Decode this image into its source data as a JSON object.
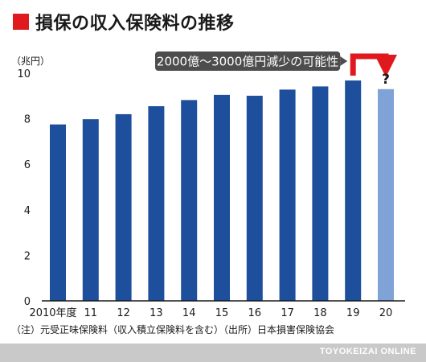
{
  "title": "損保の収入保険料の推移",
  "colors": {
    "accent": "#e0191e",
    "bar": "#1d4f9c",
    "bar_estimate": "#7fa3d6",
    "callout_bg": "#4d4d4d",
    "source_bar": "#c9c9c9"
  },
  "chart_data": {
    "type": "bar",
    "ylabel": "（兆円）",
    "ylim": [
      0,
      10
    ],
    "yticks": [
      0,
      2,
      4,
      6,
      8,
      10
    ],
    "grid": false,
    "categories": [
      "2010年度",
      "11",
      "12",
      "13",
      "14",
      "15",
      "16",
      "17",
      "18",
      "19",
      "20"
    ],
    "values": [
      7.75,
      7.98,
      8.2,
      8.55,
      8.82,
      9.05,
      9.01,
      9.28,
      9.42,
      9.68,
      9.3
    ],
    "estimated_index": 10,
    "estimate_mark": "?",
    "annotation": "2000億～3000億円減少の可能性"
  },
  "footnote": "（注）元受正味保険料（収入積立保険料を含む）（出所）日本損害保険協会",
  "source": "TOYOKEIZAI ONLINE"
}
